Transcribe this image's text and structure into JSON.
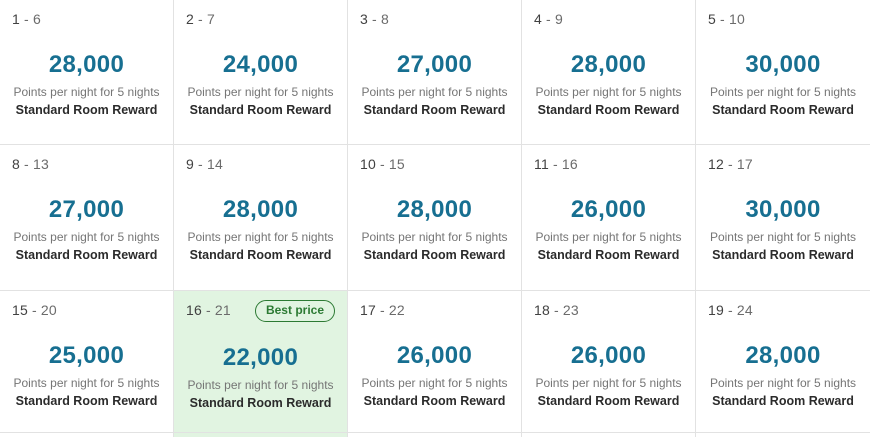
{
  "calendar": {
    "caption": "Points per night for 5 nights",
    "room": "Standard Room Reward",
    "badge_label": "Best price",
    "cells": [
      {
        "range_start": "1",
        "range_end": "- 6",
        "points": "28,000",
        "best": false
      },
      {
        "range_start": "2",
        "range_end": "- 7",
        "points": "24,000",
        "best": false
      },
      {
        "range_start": "3",
        "range_end": "- 8",
        "points": "27,000",
        "best": false
      },
      {
        "range_start": "4",
        "range_end": "- 9",
        "points": "28,000",
        "best": false
      },
      {
        "range_start": "5",
        "range_end": "- 10",
        "points": "30,000",
        "best": false
      },
      {
        "range_start": "8",
        "range_end": "- 13",
        "points": "27,000",
        "best": false
      },
      {
        "range_start": "9",
        "range_end": "- 14",
        "points": "28,000",
        "best": false
      },
      {
        "range_start": "10",
        "range_end": "- 15",
        "points": "28,000",
        "best": false
      },
      {
        "range_start": "11",
        "range_end": "- 16",
        "points": "26,000",
        "best": false
      },
      {
        "range_start": "12",
        "range_end": "- 17",
        "points": "30,000",
        "best": false
      },
      {
        "range_start": "15",
        "range_end": "- 20",
        "points": "25,000",
        "best": false
      },
      {
        "range_start": "16",
        "range_end": "- 21",
        "points": "22,000",
        "best": true
      },
      {
        "range_start": "17",
        "range_end": "- 22",
        "points": "26,000",
        "best": false
      },
      {
        "range_start": "18",
        "range_end": "- 23",
        "points": "26,000",
        "best": false
      },
      {
        "range_start": "19",
        "range_end": "- 24",
        "points": "28,000",
        "best": false
      }
    ]
  },
  "colors": {
    "points_teal": "#176f91",
    "best_price_background": "#e1f4e1",
    "badge_green": "#2c7a33",
    "divider_gray": "#e2e2e2"
  }
}
